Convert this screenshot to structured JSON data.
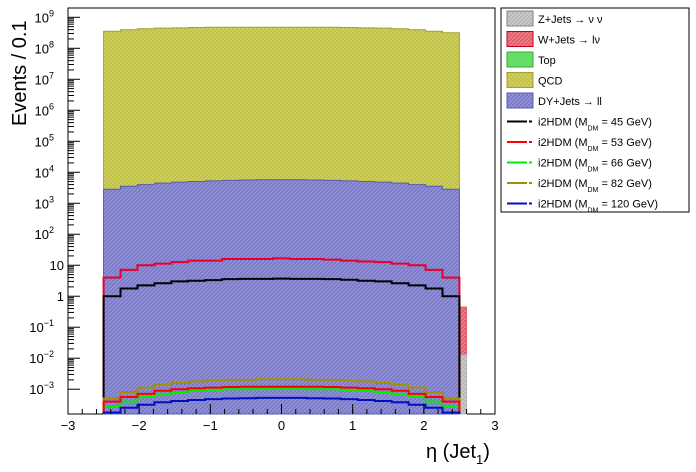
{
  "chart_data": {
    "type": "histogram",
    "xlabel": "η (Jet",
    "xlabel_sub": "1",
    "xlabel_close": ")",
    "ylabel": "Events / 0.1",
    "xlim": [
      -3,
      3
    ],
    "ylim_log10": [
      -3.8,
      9.3
    ],
    "y_scale": "log",
    "x_ticks": [
      {
        "v": -3,
        "label": "−3"
      },
      {
        "v": -2,
        "label": "−2"
      },
      {
        "v": -1,
        "label": "−1"
      },
      {
        "v": 0,
        "label": "0"
      },
      {
        "v": 1,
        "label": "1"
      },
      {
        "v": 2,
        "label": "2"
      },
      {
        "v": 3,
        "label": "3"
      }
    ],
    "y_ticks": [
      {
        "exp": -3,
        "base": "10",
        "sup": "−3"
      },
      {
        "exp": -2,
        "base": "10",
        "sup": "−2"
      },
      {
        "exp": -1,
        "base": "10",
        "sup": "−1"
      },
      {
        "exp": 0,
        "base": "1",
        "sup": ""
      },
      {
        "exp": 1,
        "base": "10",
        "sup": ""
      },
      {
        "exp": 2,
        "base": "10",
        "sup": "2"
      },
      {
        "exp": 3,
        "base": "10",
        "sup": "3"
      },
      {
        "exp": 4,
        "base": "10",
        "sup": "4"
      },
      {
        "exp": 5,
        "base": "10",
        "sup": "5"
      },
      {
        "exp": 6,
        "base": "10",
        "sup": "6"
      },
      {
        "exp": 7,
        "base": "10",
        "sup": "7"
      },
      {
        "exp": 8,
        "base": "10",
        "sup": "8"
      },
      {
        "exp": 9,
        "base": "10",
        "sup": "9"
      }
    ],
    "bin_range": [
      -2.5,
      2.6
    ],
    "stack": [
      {
        "name": "DY+Jets → ll",
        "color": "#7b7bc8",
        "edge": "#5a5ab0",
        "log_top": [
          3.45,
          3.55,
          3.6,
          3.65,
          3.68,
          3.7,
          3.72,
          3.74,
          3.75,
          3.76,
          3.76,
          3.76,
          3.75,
          3.74,
          3.72,
          3.7,
          3.68,
          3.65,
          3.6,
          3.55,
          3.45
        ]
      },
      {
        "name": "QCD",
        "color": "#c2c24a",
        "edge": "#a0a030",
        "log_top": [
          8.55,
          8.6,
          8.63,
          8.65,
          8.66,
          8.67,
          8.68,
          8.68,
          8.68,
          8.68,
          8.68,
          8.68,
          8.68,
          8.68,
          8.67,
          8.66,
          8.65,
          8.63,
          8.6,
          8.55,
          8.5
        ]
      },
      {
        "name": "Top",
        "color": "#66dd66",
        "edge": "#30b030",
        "log_top": []
      },
      {
        "name": "W+Jets → lν",
        "color": "#e06070",
        "edge": "#c00020",
        "log_top": []
      },
      {
        "name": "Z+Jets → νν",
        "color": "#b8b8b8",
        "edge": "#808080",
        "log_top": []
      }
    ],
    "overflow_bins": [
      {
        "x0": 2.5,
        "x1": 2.6,
        "log_top": -0.35,
        "color": "#e06070"
      },
      {
        "x0": 2.5,
        "x1": 2.6,
        "log_top": -1.9,
        "color": "#b8b8b8"
      }
    ],
    "series": [
      {
        "name": "W+Jets envelope",
        "color": "#e8002a",
        "log_values": [
          0.6,
          0.85,
          1.0,
          1.05,
          1.1,
          1.15,
          1.15,
          1.2,
          1.2,
          1.2,
          1.22,
          1.2,
          1.2,
          1.18,
          1.15,
          1.12,
          1.1,
          1.05,
          1.0,
          0.85,
          0.6
        ]
      },
      {
        "name": "i2HDM 45",
        "color": "#000000",
        "log_values": [
          0.0,
          0.25,
          0.35,
          0.42,
          0.48,
          0.5,
          0.52,
          0.55,
          0.56,
          0.56,
          0.57,
          0.56,
          0.56,
          0.55,
          0.53,
          0.5,
          0.48,
          0.42,
          0.35,
          0.25,
          0.0
        ]
      },
      {
        "name": "i2HDM 82",
        "color": "#a09000",
        "log_values": [
          -3.3,
          -3.1,
          -2.95,
          -2.85,
          -2.8,
          -2.75,
          -2.72,
          -2.7,
          -2.7,
          -2.68,
          -2.68,
          -2.68,
          -2.7,
          -2.7,
          -2.72,
          -2.75,
          -2.8,
          -2.85,
          -2.95,
          -3.1,
          -3.3
        ]
      },
      {
        "name": "i2HDM 66",
        "color": "#00ee00",
        "log_values": [
          -3.55,
          -3.4,
          -3.25,
          -3.15,
          -3.1,
          -3.05,
          -3.02,
          -3.0,
          -3.0,
          -2.98,
          -2.98,
          -2.98,
          -3.0,
          -3.0,
          -3.02,
          -3.05,
          -3.1,
          -3.15,
          -3.25,
          -3.4,
          -3.55
        ]
      },
      {
        "name": "i2HDM 53",
        "color": "#ff0000",
        "log_values": [
          -3.4,
          -3.25,
          -3.15,
          -3.05,
          -3.0,
          -2.97,
          -2.95,
          -2.93,
          -2.92,
          -2.92,
          -2.92,
          -2.92,
          -2.92,
          -2.93,
          -2.95,
          -2.97,
          -3.0,
          -3.05,
          -3.15,
          -3.25,
          -3.4
        ]
      },
      {
        "name": "i2HDM 120",
        "color": "#0010c0",
        "log_values": [
          -3.75,
          -3.6,
          -3.5,
          -3.42,
          -3.38,
          -3.35,
          -3.32,
          -3.3,
          -3.29,
          -3.28,
          -3.28,
          -3.28,
          -3.29,
          -3.3,
          -3.32,
          -3.35,
          -3.38,
          -3.42,
          -3.5,
          -3.6,
          -3.75
        ]
      }
    ],
    "legend": [
      {
        "kind": "box",
        "label": "Z+Jets → ν ν",
        "fill": "#c8c8c8",
        "edge": "#808080"
      },
      {
        "kind": "box",
        "label": "W+Jets → lν",
        "fill": "#e06070",
        "edge": "#c00020"
      },
      {
        "kind": "box",
        "label": "Top",
        "fill": "#66dd66",
        "edge": "#30b030"
      },
      {
        "kind": "box",
        "label": "QCD",
        "fill": "#c2c24a",
        "edge": "#a0a030"
      },
      {
        "kind": "box",
        "label": "DY+Jets → ll",
        "fill": "#7b7bc8",
        "edge": "#5a5ab0"
      },
      {
        "kind": "line",
        "label": "i2HDM (M",
        "sub": "DM",
        "tail": " =  45 GeV)",
        "color": "#000000"
      },
      {
        "kind": "line",
        "label": "i2HDM (M",
        "sub": "DM",
        "tail": " =  53 GeV)",
        "color": "#ff0000"
      },
      {
        "kind": "line",
        "label": "i2HDM (M",
        "sub": "DM",
        "tail": " =  66 GeV)",
        "color": "#00ee00"
      },
      {
        "kind": "line",
        "label": "i2HDM (M",
        "sub": "DM",
        "tail": " =  82 GeV)",
        "color": "#a09000"
      },
      {
        "kind": "line",
        "label": "i2HDM (M",
        "sub": "DM",
        "tail": " = 120 GeV)",
        "color": "#0010c0"
      }
    ]
  }
}
